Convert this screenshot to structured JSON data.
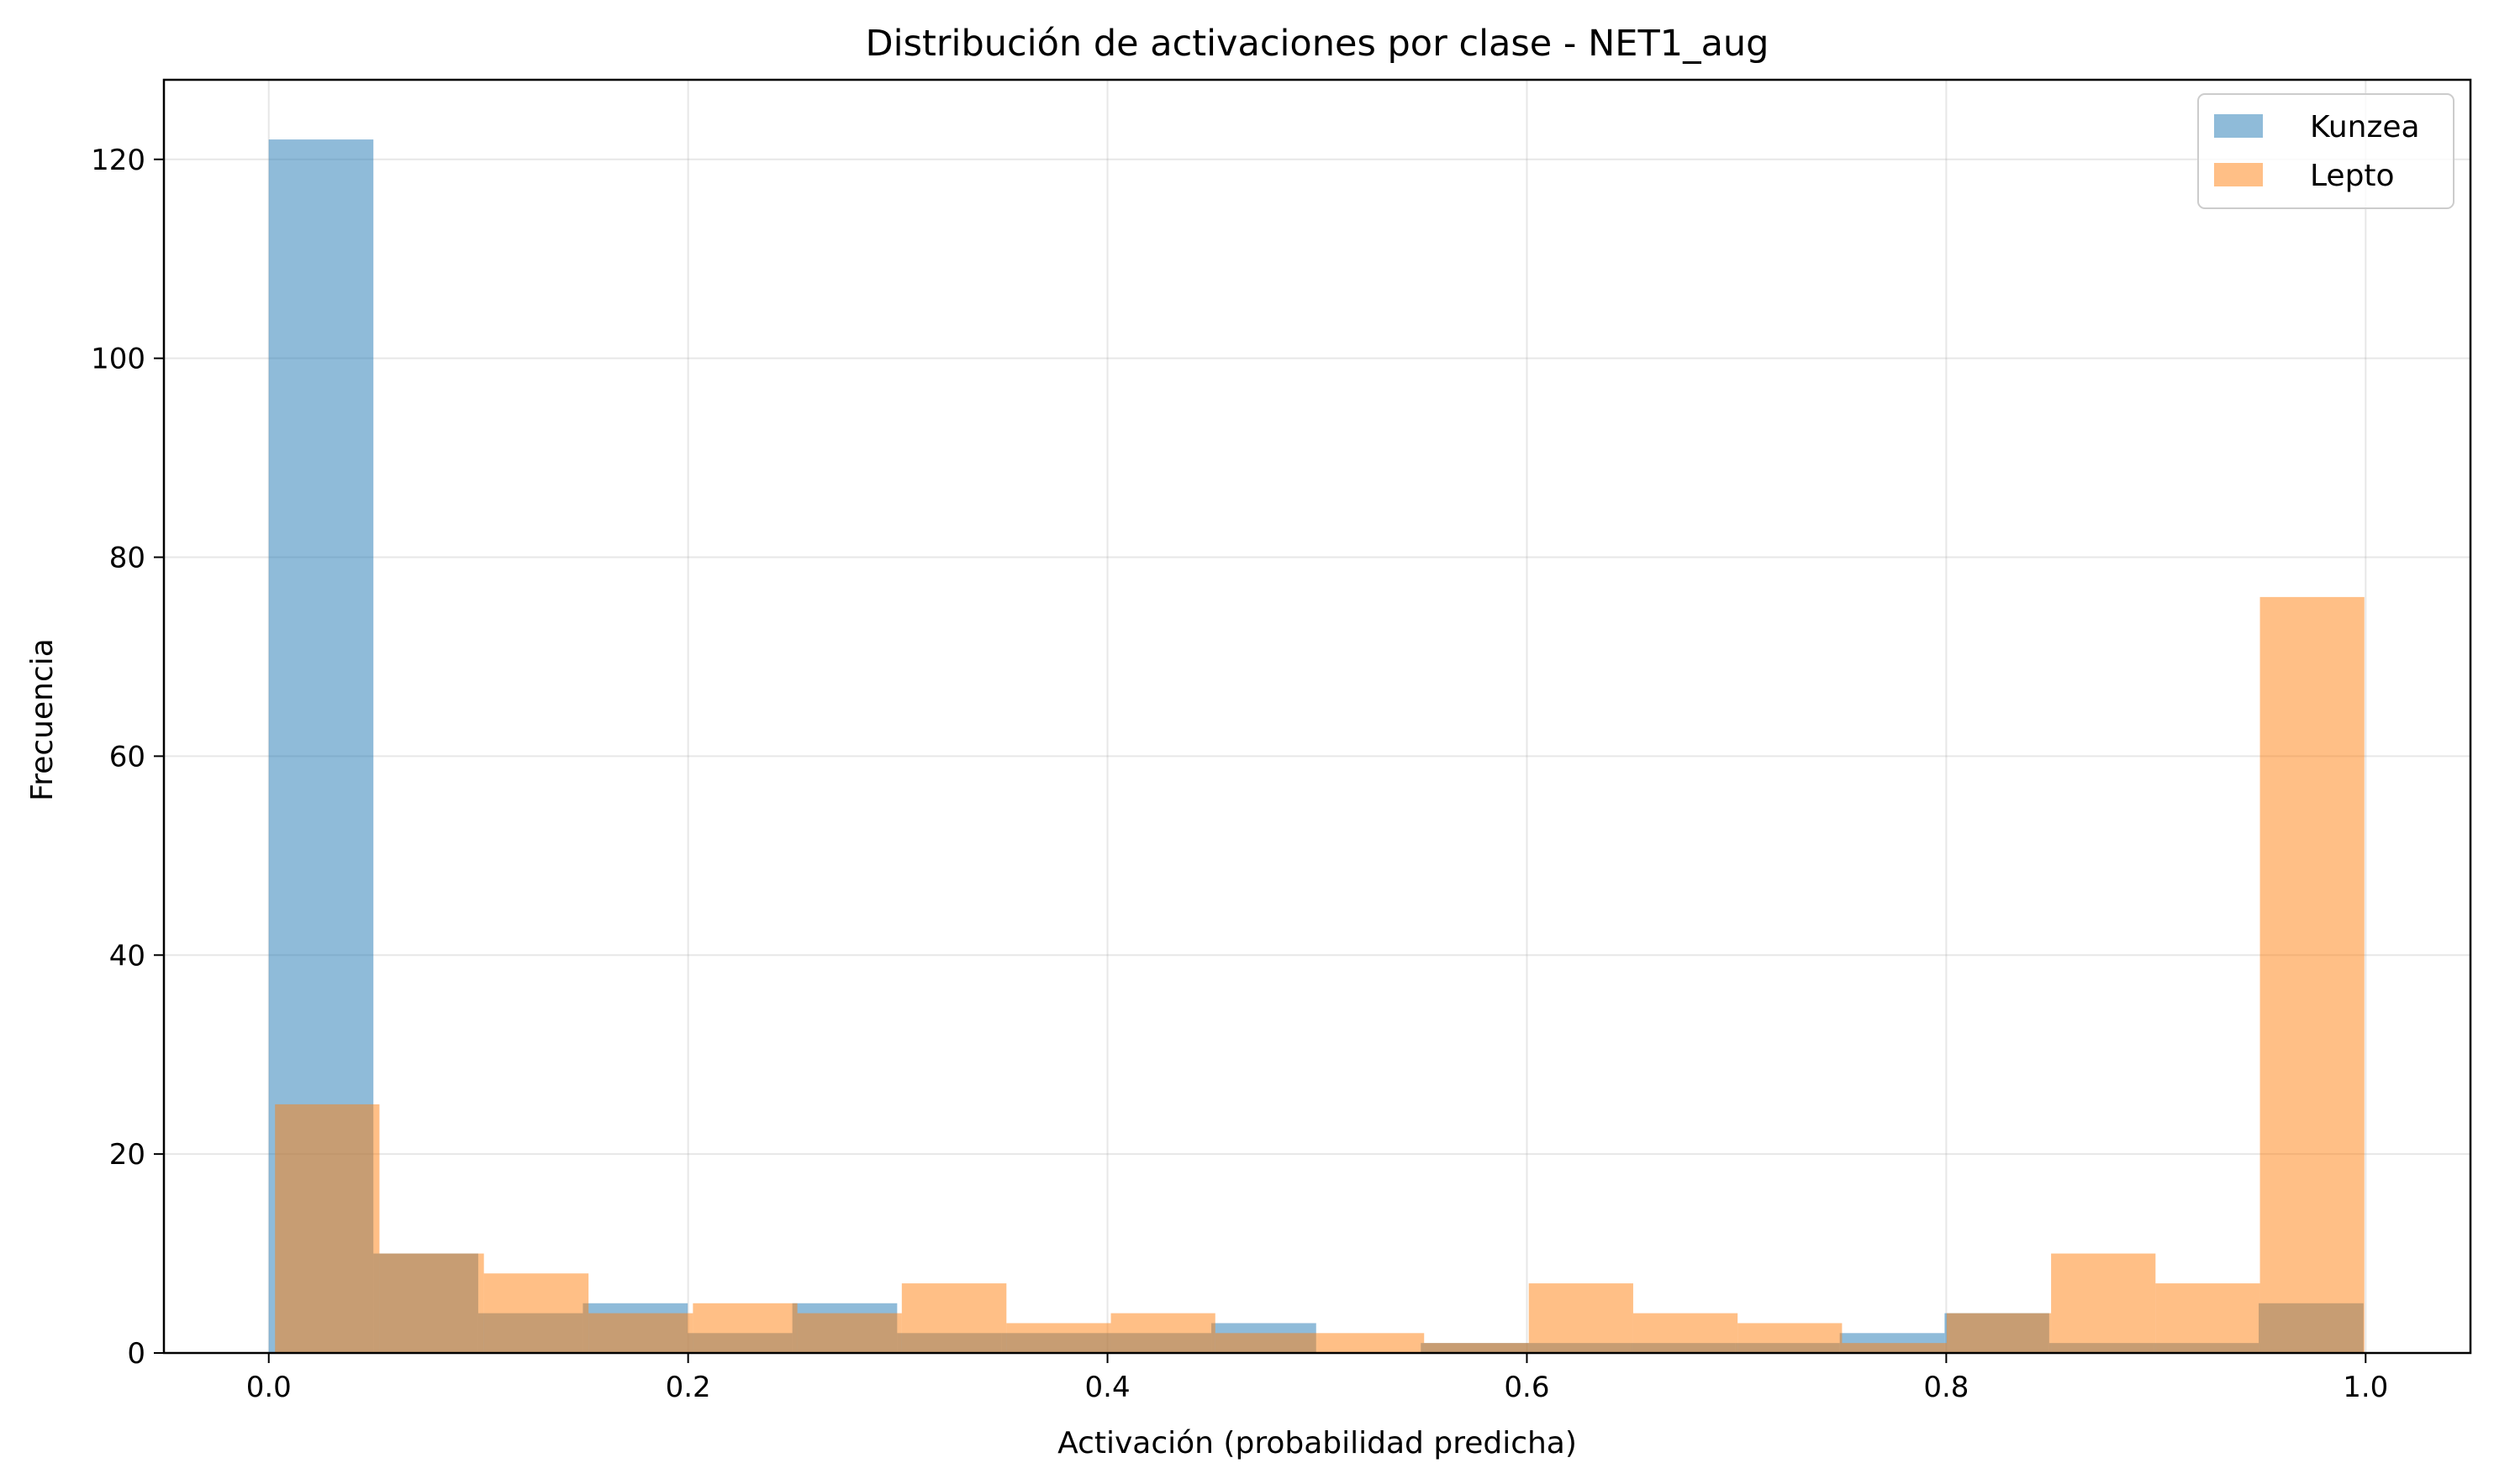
{
  "chart_data": {
    "type": "histogram",
    "title": "Distribución de activaciones por clase - NET1_aug",
    "xlabel": "Activación (probabilidad predicha)",
    "ylabel": "Frecuencia",
    "xlim": [
      -0.05,
      1.05
    ],
    "ylim": [
      0,
      128
    ],
    "x_ticks": [
      "0.0",
      "0.2",
      "0.4",
      "0.6",
      "0.8",
      "1.0"
    ],
    "y_ticks": [
      "0",
      "20",
      "40",
      "60",
      "80",
      "100",
      "120"
    ],
    "grid": true,
    "legend_position": "top-right",
    "series": [
      {
        "name": "Kunzea",
        "color": "#1f77b4",
        "opacity": 0.5,
        "bin_edges": [
          0.0,
          0.0499,
          0.0999,
          0.1498,
          0.1998,
          0.2497,
          0.2997,
          0.3496,
          0.3996,
          0.4495,
          0.4995,
          0.5494,
          0.5994,
          0.6493,
          0.6993,
          0.7492,
          0.7992,
          0.8491,
          0.8991,
          0.949,
          0.999
        ],
        "counts": [
          122,
          10,
          4,
          5,
          2,
          5,
          2,
          2,
          2,
          3,
          0,
          1,
          1,
          1,
          1,
          2,
          4,
          1,
          1,
          5
        ]
      },
      {
        "name": "Lepto",
        "color": "#ff7f0e",
        "opacity": 0.5,
        "bin_edges": [
          0.003,
          0.0528,
          0.1026,
          0.1525,
          0.2023,
          0.2521,
          0.3019,
          0.3518,
          0.4016,
          0.4514,
          0.5012,
          0.551,
          0.6009,
          0.6507,
          0.7005,
          0.7503,
          0.8002,
          0.85,
          0.8998,
          0.9496,
          0.9994
        ],
        "counts": [
          25,
          10,
          8,
          4,
          5,
          4,
          7,
          3,
          4,
          2,
          2,
          1,
          7,
          4,
          3,
          1,
          4,
          10,
          7,
          76
        ]
      }
    ]
  }
}
